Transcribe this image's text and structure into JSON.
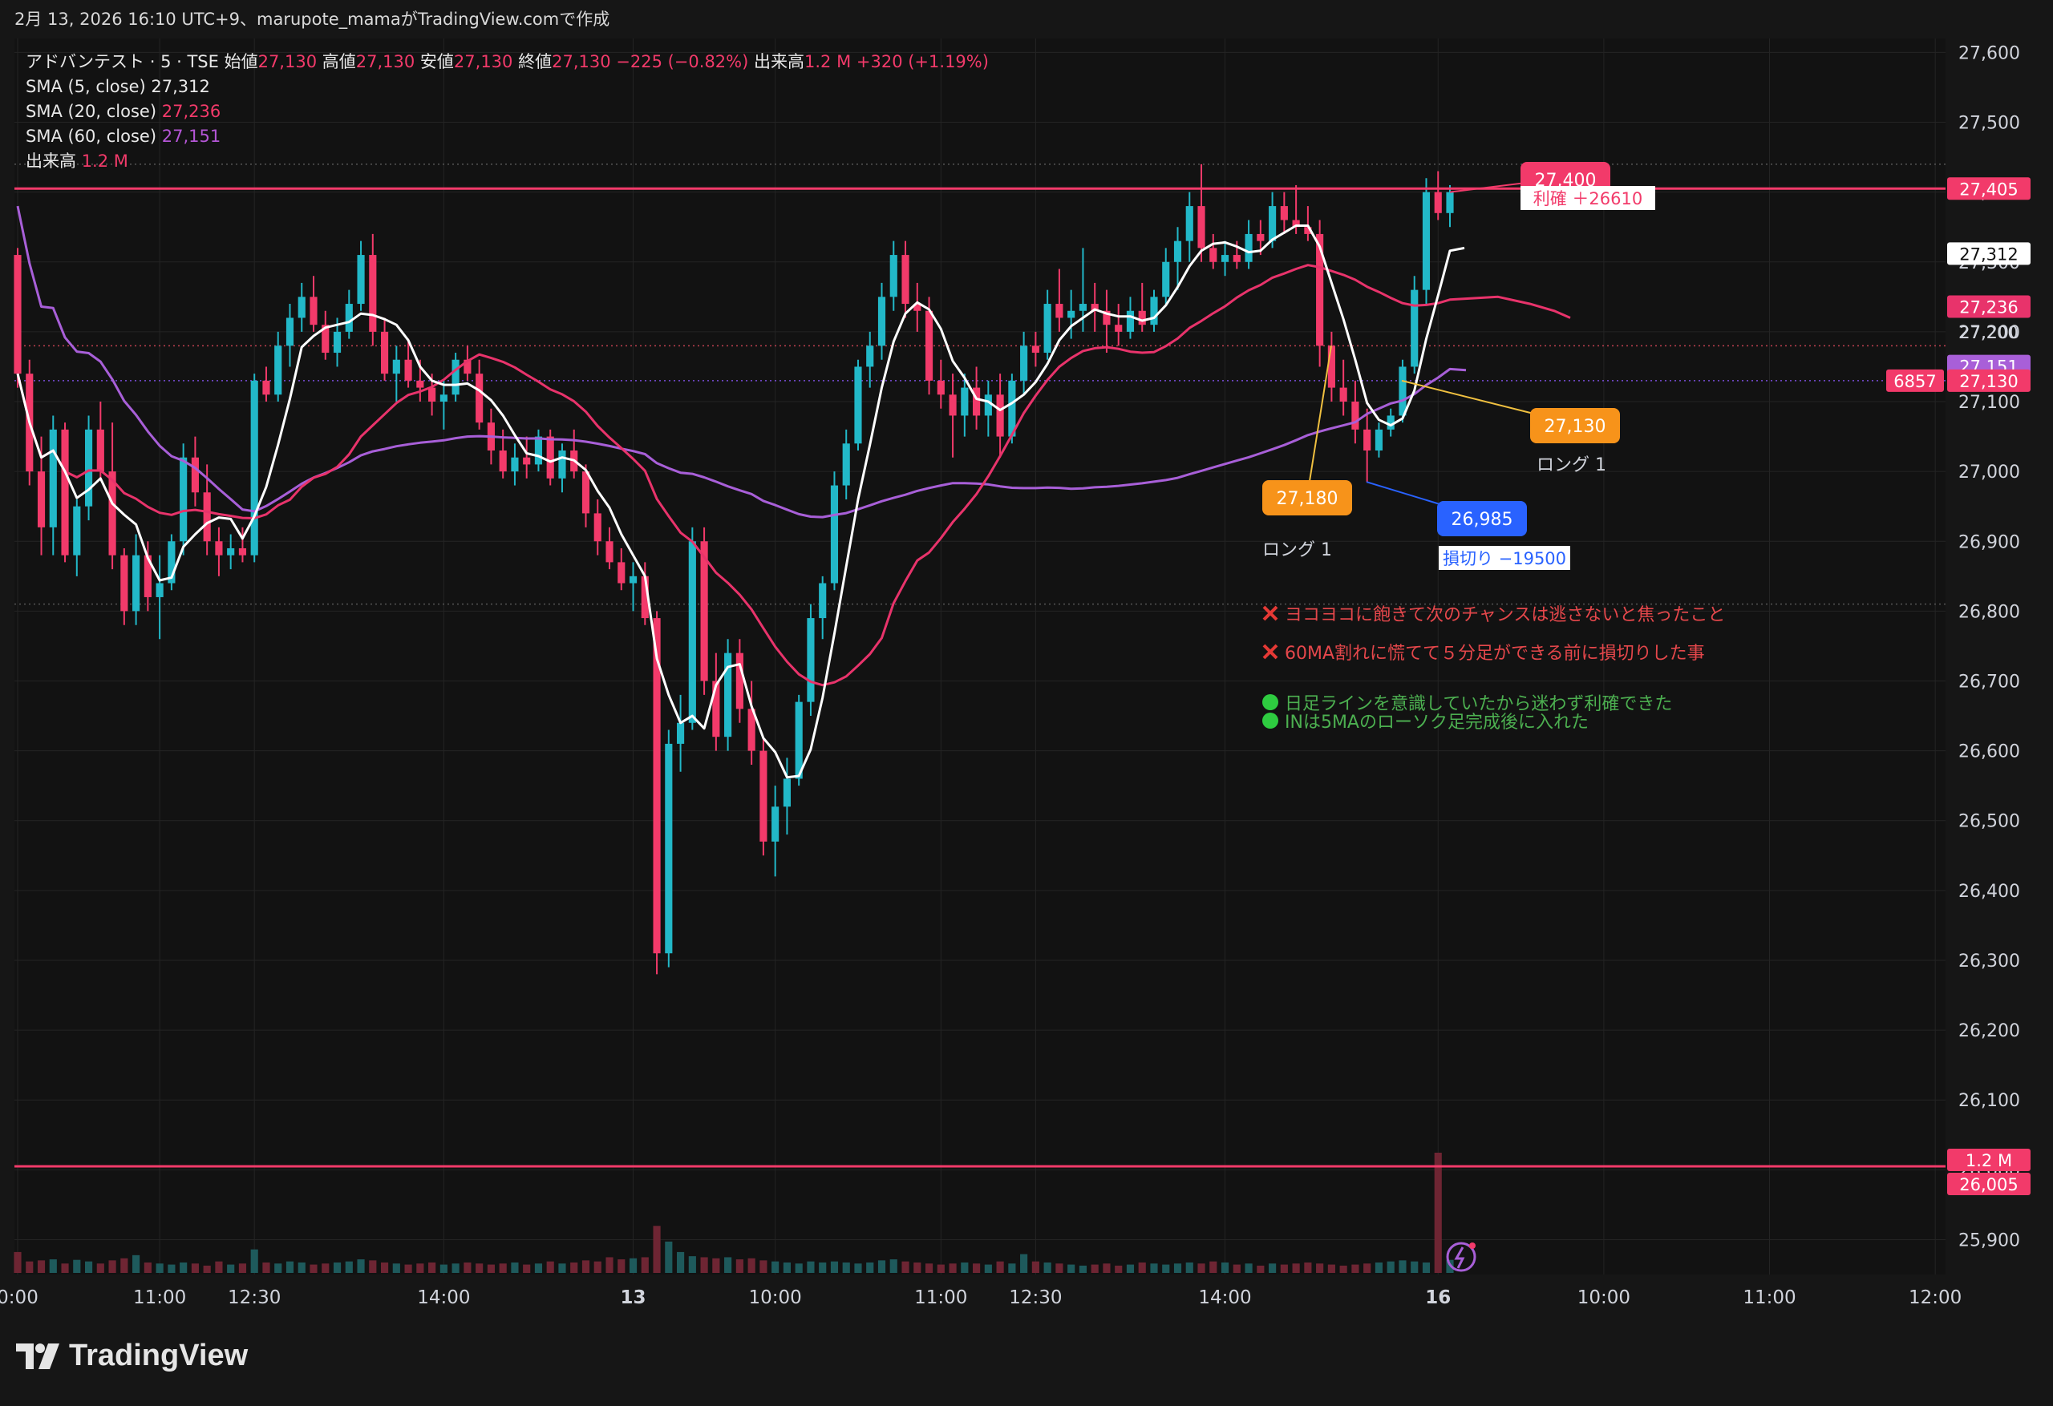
{
  "header": {
    "credit": "2月 13, 2026 16:10 UTC+9、marupote_mamaがTradingView.comで作成"
  },
  "legend": {
    "symbol": "アドバンテスト · 5 · TSE",
    "open_label": "始値",
    "open": "27,130",
    "high_label": "高値",
    "high": "27,130",
    "low_label": "安値",
    "low": "27,130",
    "close_label": "終値",
    "close": "27,130",
    "change": "−225 (−0.82%)",
    "volume_label": "出来高",
    "volume": "1.2 M",
    "volume_change": "+320 (+1.19%)",
    "sma5_label": "SMA (5, close)",
    "sma5": "27,312",
    "sma20_label": "SMA (20, close)",
    "sma20": "27,236",
    "sma60_label": "SMA (60, close)",
    "sma60": "27,151",
    "vol_label": "出来高",
    "vol": "1.2 M"
  },
  "colors": {
    "background": "#121212",
    "up": "#22b8c8",
    "down": "#f23a6a",
    "sma5": "#ffffff",
    "sma20": "#e8336b",
    "sma60": "#a85fd8",
    "hline": "#f23a6a",
    "annotation_orange": "#f7931a",
    "annotation_blue": "#2962ff",
    "note_red": "#e5474b",
    "note_green": "#4caf50"
  },
  "chart_data": {
    "type": "candlestick",
    "y_axis": {
      "min": 25850,
      "max": 27620,
      "ticks": [
        "27,600",
        "27,500",
        "27,400",
        "27,300",
        "27,200",
        "27,100",
        "27,000",
        "26,900",
        "26,800",
        "26,700",
        "26,600",
        "26,500",
        "26,400",
        "26,300",
        "26,200",
        "26,100",
        "26,000",
        "25,900"
      ]
    },
    "x_ticks": [
      "0:00",
      "11:00",
      "12:30",
      "14:00",
      "13",
      "10:00",
      "11:00",
      "12:30",
      "14:00",
      "16",
      "10:00",
      "11:00",
      "12:00"
    ],
    "price_tags": [
      {
        "label": "27,405",
        "kind": "hline"
      },
      {
        "label": "27,312",
        "kind": "sma5"
      },
      {
        "label": "27,236",
        "kind": "sma20"
      },
      {
        "label": "27,200",
        "kind": "tick"
      },
      {
        "label": "27,151",
        "kind": "sma60"
      },
      {
        "label": "27,130",
        "kind": "last"
      },
      {
        "label": "6857",
        "kind": "symbol"
      },
      {
        "label": "1.2 M",
        "kind": "volume"
      },
      {
        "label": "26,005",
        "kind": "hline2"
      }
    ],
    "hlines": [
      27405,
      26005
    ],
    "candles": [
      [
        27310,
        27320,
        27120,
        27140
      ],
      [
        27140,
        27160,
        26980,
        27000
      ],
      [
        27000,
        27050,
        26880,
        26920
      ],
      [
        26920,
        27080,
        26880,
        27060
      ],
      [
        27060,
        27070,
        26870,
        26880
      ],
      [
        26880,
        26960,
        26850,
        26950
      ],
      [
        26950,
        27080,
        26930,
        27060
      ],
      [
        27060,
        27100,
        26990,
        27000
      ],
      [
        27000,
        27070,
        26860,
        26880
      ],
      [
        26880,
        26890,
        26780,
        26800
      ],
      [
        26800,
        26910,
        26780,
        26880
      ],
      [
        26880,
        26900,
        26800,
        26820
      ],
      [
        26820,
        26880,
        26760,
        26840
      ],
      [
        26840,
        26910,
        26830,
        26900
      ],
      [
        26900,
        27040,
        26880,
        27020
      ],
      [
        27020,
        27050,
        26950,
        26970
      ],
      [
        26970,
        27010,
        26880,
        26900
      ],
      [
        26900,
        26920,
        26850,
        26880
      ],
      [
        26880,
        26910,
        26860,
        26890
      ],
      [
        26890,
        26920,
        26870,
        26880
      ],
      [
        26880,
        27140,
        26870,
        27130
      ],
      [
        27130,
        27150,
        27100,
        27110
      ],
      [
        27110,
        27200,
        27100,
        27180
      ],
      [
        27180,
        27240,
        27150,
        27220
      ],
      [
        27220,
        27270,
        27200,
        27250
      ],
      [
        27250,
        27280,
        27200,
        27210
      ],
      [
        27210,
        27230,
        27160,
        27170
      ],
      [
        27170,
        27220,
        27150,
        27200
      ],
      [
        27200,
        27260,
        27190,
        27240
      ],
      [
        27240,
        27330,
        27230,
        27310
      ],
      [
        27310,
        27340,
        27180,
        27200
      ],
      [
        27200,
        27220,
        27130,
        27140
      ],
      [
        27140,
        27180,
        27100,
        27160
      ],
      [
        27160,
        27190,
        27120,
        27130
      ],
      [
        27130,
        27160,
        27100,
        27120
      ],
      [
        27120,
        27140,
        27080,
        27100
      ],
      [
        27100,
        27130,
        27060,
        27110
      ],
      [
        27110,
        27170,
        27100,
        27160
      ],
      [
        27160,
        27180,
        27130,
        27140
      ],
      [
        27140,
        27160,
        27060,
        27070
      ],
      [
        27070,
        27090,
        27010,
        27030
      ],
      [
        27030,
        27060,
        26990,
        27000
      ],
      [
        27000,
        27040,
        26980,
        27020
      ],
      [
        27020,
        27050,
        26990,
        27010
      ],
      [
        27010,
        27060,
        27000,
        27050
      ],
      [
        27050,
        27060,
        26980,
        26990
      ],
      [
        26990,
        27040,
        26970,
        27030
      ],
      [
        27030,
        27060,
        26990,
        27000
      ],
      [
        27000,
        27010,
        26920,
        26940
      ],
      [
        26940,
        26960,
        26880,
        26900
      ],
      [
        26900,
        26920,
        26860,
        26870
      ],
      [
        26870,
        26890,
        26830,
        26840
      ],
      [
        26840,
        26870,
        26800,
        26850
      ],
      [
        26850,
        26870,
        26780,
        26790
      ],
      [
        26790,
        26800,
        26280,
        26310
      ],
      [
        26310,
        26630,
        26290,
        26610
      ],
      [
        26610,
        26680,
        26570,
        26640
      ],
      [
        26640,
        26920,
        26630,
        26900
      ],
      [
        26900,
        26920,
        26680,
        26700
      ],
      [
        26700,
        26740,
        26600,
        26620
      ],
      [
        26620,
        26760,
        26600,
        26740
      ],
      [
        26740,
        26760,
        26640,
        26660
      ],
      [
        26660,
        26700,
        26580,
        26600
      ],
      [
        26600,
        26620,
        26450,
        26470
      ],
      [
        26470,
        26550,
        26420,
        26520
      ],
      [
        26520,
        26590,
        26480,
        26560
      ],
      [
        26560,
        26680,
        26550,
        26670
      ],
      [
        26670,
        26810,
        26650,
        26790
      ],
      [
        26790,
        26850,
        26760,
        26840
      ],
      [
        26840,
        27000,
        26830,
        26980
      ],
      [
        26980,
        27060,
        26960,
        27040
      ],
      [
        27040,
        27160,
        27030,
        27150
      ],
      [
        27150,
        27200,
        27120,
        27180
      ],
      [
        27180,
        27270,
        27160,
        27250
      ],
      [
        27250,
        27330,
        27230,
        27310
      ],
      [
        27310,
        27330,
        27220,
        27240
      ],
      [
        27240,
        27270,
        27200,
        27230
      ],
      [
        27230,
        27250,
        27110,
        27130
      ],
      [
        27130,
        27160,
        27090,
        27110
      ],
      [
        27110,
        27140,
        27020,
        27080
      ],
      [
        27080,
        27140,
        27050,
        27120
      ],
      [
        27120,
        27150,
        27060,
        27080
      ],
      [
        27080,
        27130,
        27050,
        27110
      ],
      [
        27110,
        27140,
        27020,
        27050
      ],
      [
        27050,
        27140,
        27040,
        27130
      ],
      [
        27130,
        27200,
        27110,
        27180
      ],
      [
        27180,
        27200,
        27150,
        27170
      ],
      [
        27170,
        27260,
        27160,
        27240
      ],
      [
        27240,
        27290,
        27200,
        27220
      ],
      [
        27220,
        27260,
        27190,
        27230
      ],
      [
        27230,
        27320,
        27200,
        27240
      ],
      [
        27240,
        27270,
        27200,
        27230
      ],
      [
        27230,
        27260,
        27170,
        27210
      ],
      [
        27210,
        27240,
        27180,
        27200
      ],
      [
        27200,
        27250,
        27190,
        27230
      ],
      [
        27230,
        27270,
        27200,
        27210
      ],
      [
        27210,
        27260,
        27200,
        27250
      ],
      [
        27250,
        27320,
        27240,
        27300
      ],
      [
        27300,
        27350,
        27260,
        27330
      ],
      [
        27330,
        27400,
        27300,
        27380
      ],
      [
        27380,
        27440,
        27300,
        27320
      ],
      [
        27320,
        27340,
        27290,
        27300
      ],
      [
        27300,
        27330,
        27280,
        27310
      ],
      [
        27310,
        27330,
        27290,
        27300
      ],
      [
        27300,
        27360,
        27290,
        27340
      ],
      [
        27340,
        27360,
        27310,
        27330
      ],
      [
        27330,
        27400,
        27320,
        27380
      ],
      [
        27380,
        27400,
        27340,
        27360
      ],
      [
        27360,
        27410,
        27340,
        27350
      ],
      [
        27350,
        27380,
        27330,
        27340
      ],
      [
        27340,
        27360,
        27150,
        27180
      ],
      [
        27180,
        27200,
        27100,
        27120
      ],
      [
        27120,
        27160,
        27080,
        27100
      ],
      [
        27100,
        27130,
        27040,
        27060
      ],
      [
        27060,
        27090,
        26985,
        27030
      ],
      [
        27030,
        27070,
        27020,
        27060
      ],
      [
        27060,
        27090,
        27050,
        27080
      ],
      [
        27080,
        27160,
        27070,
        27150
      ],
      [
        27150,
        27280,
        27140,
        27260
      ],
      [
        27260,
        27420,
        27240,
        27400
      ],
      [
        27400,
        27430,
        27360,
        27370
      ],
      [
        27370,
        27410,
        27350,
        27400
      ]
    ],
    "volume": [
      40,
      22,
      24,
      26,
      18,
      25,
      22,
      18,
      24,
      28,
      34,
      20,
      18,
      16,
      20,
      18,
      14,
      22,
      16,
      18,
      45,
      20,
      18,
      22,
      20,
      16,
      18,
      20,
      22,
      26,
      24,
      20,
      18,
      16,
      18,
      20,
      16,
      18,
      20,
      18,
      16,
      18,
      20,
      16,
      18,
      22,
      18,
      20,
      24,
      22,
      30,
      26,
      28,
      30,
      90,
      60,
      40,
      32,
      30,
      28,
      30,
      26,
      28,
      24,
      22,
      20,
      18,
      22,
      20,
      22,
      20,
      18,
      20,
      24,
      26,
      22,
      20,
      18,
      16,
      18,
      20,
      18,
      16,
      22,
      18,
      36,
      22,
      20,
      18,
      16,
      14,
      16,
      18,
      14,
      16,
      20,
      18,
      16,
      18,
      20,
      18,
      22,
      20,
      16,
      18,
      14,
      18,
      16,
      18,
      20,
      18,
      16,
      14,
      16,
      18,
      20,
      22,
      24,
      22,
      20,
      230,
      25
    ],
    "annotations": {
      "take_profit_price": "27,400",
      "take_profit_label": "利確 ＋26610",
      "long1_price": "27,180",
      "long1_label": "ロング 1",
      "long2_price": "27,130",
      "long2_label": "ロング 1",
      "stop_price": "26,985",
      "stop_label": "損切り −19500"
    },
    "notes": {
      "bad1": "ヨコヨコに飽きて次のチャンスは逃さないと焦ったこと",
      "bad2": "60MA割れに慌てて５分足ができる前に損切りした事",
      "good1": "日足ラインを意識していたから迷わず利確できた",
      "good2": "INは5MAのローソク足完成後に入れた"
    }
  },
  "footer": {
    "brand": "TradingView"
  }
}
